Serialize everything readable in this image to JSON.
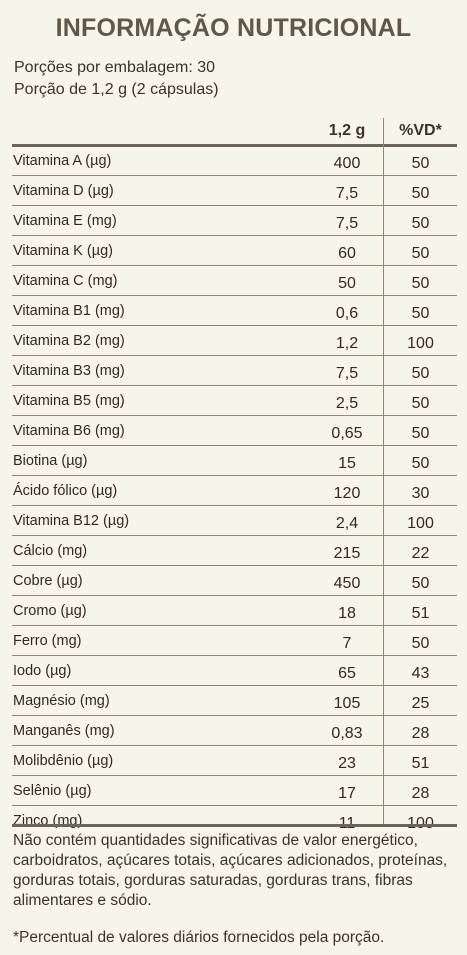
{
  "title": "INFORMAÇÃO NUTRICIONAL",
  "servings_per_package": "Porções por embalagem: 30",
  "serving_size": "Porção de 1,2 g (2 cápsulas)",
  "columns": {
    "amount": "1,2 g",
    "dv": "%VD*"
  },
  "rows": [
    {
      "name": "Vitamina A (µg)",
      "amount": "400",
      "dv": "50"
    },
    {
      "name": "Vitamina D (µg)",
      "amount": "7,5",
      "dv": "50"
    },
    {
      "name": "Vitamina E (mg)",
      "amount": "7,5",
      "dv": "50"
    },
    {
      "name": "Vitamina K (µg)",
      "amount": "60",
      "dv": "50"
    },
    {
      "name": "Vitamina C (mg)",
      "amount": "50",
      "dv": "50"
    },
    {
      "name": "Vitamina B1 (mg)",
      "amount": "0,6",
      "dv": "50"
    },
    {
      "name": "Vitamina B2 (mg)",
      "amount": "1,2",
      "dv": "100"
    },
    {
      "name": "Vitamina B3 (mg)",
      "amount": "7,5",
      "dv": "50"
    },
    {
      "name": "Vitamina B5 (mg)",
      "amount": "2,5",
      "dv": "50"
    },
    {
      "name": "Vitamina B6 (mg)",
      "amount": "0,65",
      "dv": "50"
    },
    {
      "name": "Biotina (µg)",
      "amount": "15",
      "dv": "50"
    },
    {
      "name": "Ácido fólico (µg)",
      "amount": "120",
      "dv": "30"
    },
    {
      "name": "Vitamina B12 (µg)",
      "amount": "2,4",
      "dv": "100"
    },
    {
      "name": "Cálcio (mg)",
      "amount": "215",
      "dv": "22"
    },
    {
      "name": "Cobre (µg)",
      "amount": "450",
      "dv": "50"
    },
    {
      "name": "Cromo (µg)",
      "amount": "18",
      "dv": "51"
    },
    {
      "name": "Ferro (mg)",
      "amount": "7",
      "dv": "50"
    },
    {
      "name": "Iodo (µg)",
      "amount": "65",
      "dv": "43"
    },
    {
      "name": "Magnésio (mg)",
      "amount": "105",
      "dv": "25"
    },
    {
      "name": "Manganês (mg)",
      "amount": "0,83",
      "dv": "28"
    },
    {
      "name": "Molibdênio (µg)",
      "amount": "23",
      "dv": "51"
    },
    {
      "name": "Selênio (µg)",
      "amount": "17",
      "dv": "28"
    },
    {
      "name": "Zinco (mg)",
      "amount": "11",
      "dv": "100"
    }
  ],
  "note": "Não contém quantidades significativas de valor energético, carboidratos, açúcares totais, açúcares adicionados, proteínas, gorduras totais, gorduras saturadas, gorduras trans, fibras alimentares e sódio.",
  "footnote": "*Percentual de valores diários fornecidos pela porção."
}
